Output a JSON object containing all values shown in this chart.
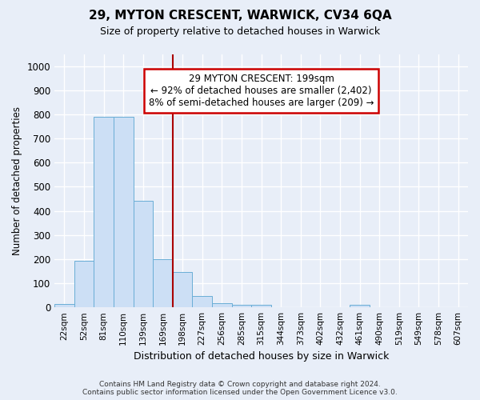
{
  "title": "29, MYTON CRESCENT, WARWICK, CV34 6QA",
  "subtitle": "Size of property relative to detached houses in Warwick",
  "xlabel": "Distribution of detached houses by size in Warwick",
  "ylabel": "Number of detached properties",
  "categories": [
    "22sqm",
    "52sqm",
    "81sqm",
    "110sqm",
    "139sqm",
    "169sqm",
    "198sqm",
    "227sqm",
    "256sqm",
    "285sqm",
    "315sqm",
    "344sqm",
    "373sqm",
    "402sqm",
    "432sqm",
    "461sqm",
    "490sqm",
    "519sqm",
    "549sqm",
    "578sqm",
    "607sqm"
  ],
  "values": [
    15,
    193,
    790,
    790,
    440,
    200,
    145,
    48,
    18,
    10,
    10,
    0,
    0,
    0,
    0,
    10,
    0,
    0,
    0,
    0,
    0
  ],
  "bar_color": "#ccdff5",
  "bar_edge_color": "#6aaed6",
  "ylim": [
    0,
    1050
  ],
  "yticks": [
    0,
    100,
    200,
    300,
    400,
    500,
    600,
    700,
    800,
    900,
    1000
  ],
  "property_label": "29 MYTON CRESCENT: 199sqm",
  "annotation_line1": "← 92% of detached houses are smaller (2,402)",
  "annotation_line2": "8% of semi-detached houses are larger (209) →",
  "vline_position": 6.0,
  "footer_line1": "Contains HM Land Registry data © Crown copyright and database right 2024.",
  "footer_line2": "Contains public sector information licensed under the Open Government Licence v3.0.",
  "background_color": "#e8eef8",
  "grid_color": "#ffffff",
  "annotation_box_edge": "#cc0000",
  "vline_color": "#aa0000",
  "title_fontsize": 11,
  "subtitle_fontsize": 9
}
